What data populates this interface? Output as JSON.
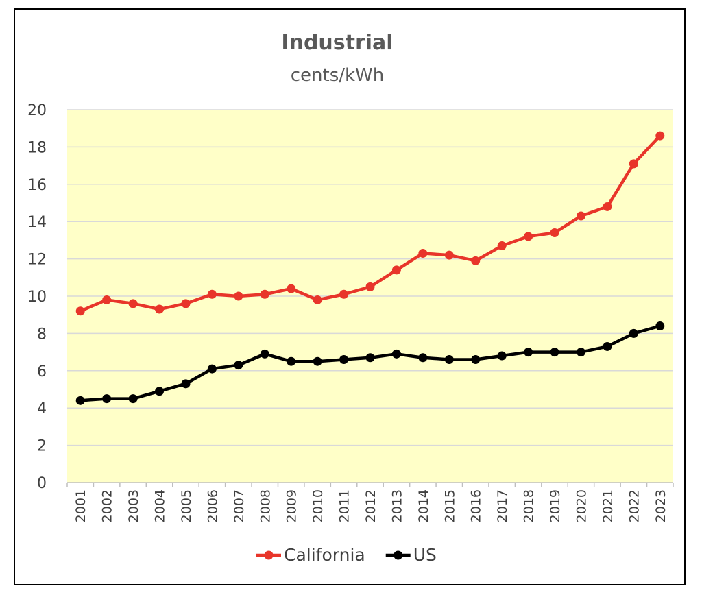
{
  "chart_data": {
    "type": "line",
    "title": "Industrial",
    "subtitle": "cents/kWh",
    "xlabel": "",
    "ylabel": "",
    "ylim": [
      0,
      20
    ],
    "yticks": [
      0,
      2,
      4,
      6,
      8,
      10,
      12,
      14,
      16,
      18,
      20
    ],
    "grid": true,
    "legend_position": "bottom",
    "plot_background": "#ffffc8",
    "x": [
      "2001",
      "2002",
      "2003",
      "2004",
      "2005",
      "2006",
      "2007",
      "2008",
      "2009",
      "2010",
      "2011",
      "2012",
      "2013",
      "2014",
      "2015",
      "2016",
      "2017",
      "2018",
      "2019",
      "2020",
      "2021",
      "2022",
      "2023"
    ],
    "series": [
      {
        "name": "California",
        "color": "#e8352a",
        "values": [
          9.2,
          9.8,
          9.6,
          9.3,
          9.6,
          10.1,
          10.0,
          10.1,
          10.4,
          9.8,
          10.1,
          10.5,
          11.4,
          12.3,
          12.2,
          11.9,
          12.7,
          13.2,
          13.4,
          14.3,
          14.8,
          17.1,
          18.6
        ]
      },
      {
        "name": "US",
        "color": "#000000",
        "values": [
          4.4,
          4.5,
          4.5,
          4.9,
          5.3,
          6.1,
          6.3,
          6.9,
          6.5,
          6.5,
          6.6,
          6.7,
          6.9,
          6.7,
          6.6,
          6.6,
          6.8,
          7.0,
          7.0,
          7.0,
          7.3,
          8.0,
          8.4
        ]
      }
    ]
  }
}
